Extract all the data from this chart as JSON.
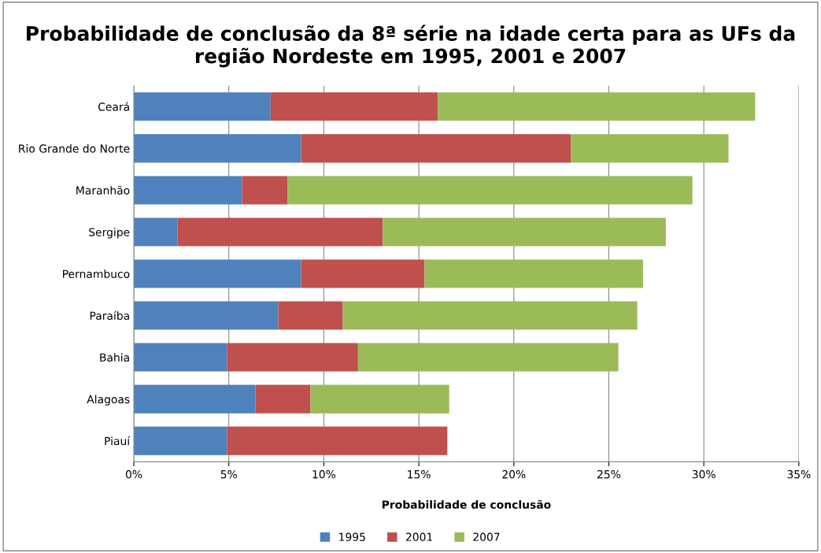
{
  "chart_data": {
    "type": "bar",
    "orientation": "horizontal",
    "stacked": true,
    "title": "Probabilidade de conclusão da 8ª série na idade certa para as UFs da região Nordeste em 1995, 2001 e 2007",
    "xlabel": "Probabilidade de conclusão",
    "categories": [
      "Ceará",
      "Rio Grande do Norte",
      "Maranhão",
      "Sergipe",
      "Pernambuco",
      "Paraíba",
      "Bahia",
      "Alagoas",
      "Piauí"
    ],
    "series": [
      {
        "name": "1995",
        "color": "#4f81bd",
        "values": [
          7.2,
          8.8,
          5.7,
          2.3,
          8.8,
          7.6,
          4.9,
          6.4,
          4.9
        ]
      },
      {
        "name": "2001",
        "color": "#c0504d",
        "values": [
          8.8,
          14.2,
          2.4,
          10.8,
          6.5,
          3.4,
          6.9,
          2.9,
          11.6
        ]
      },
      {
        "name": "2007",
        "color": "#9bbb59",
        "values": [
          16.7,
          8.3,
          21.3,
          14.9,
          11.5,
          15.5,
          13.7,
          7.3,
          null
        ]
      }
    ],
    "xlim": [
      0,
      35
    ],
    "xticks": [
      {
        "value": 0,
        "label": "0%"
      },
      {
        "value": 5,
        "label": "5%"
      },
      {
        "value": 10,
        "label": "10%"
      },
      {
        "value": 15,
        "label": "15%"
      },
      {
        "value": 20,
        "label": "20%"
      },
      {
        "value": 25,
        "label": "25%"
      },
      {
        "value": 30,
        "label": "30%"
      },
      {
        "value": 35,
        "label": "35%"
      }
    ],
    "grid": "x",
    "legend": "bottom"
  }
}
